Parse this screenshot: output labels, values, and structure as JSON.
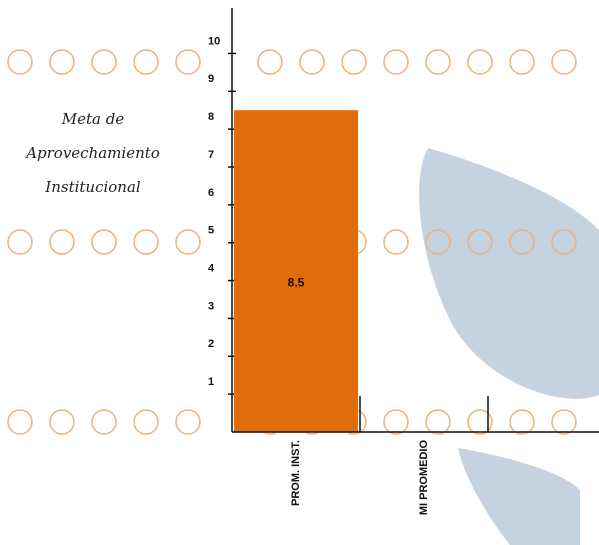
{
  "chart_data": {
    "type": "bar",
    "annotation_lines": [
      "Meta de",
      "Aprovechamiento",
      "Institucional"
    ],
    "categories": [
      "PROM. INST.",
      "MI PROMEDIO"
    ],
    "values": [
      8.5,
      null
    ],
    "color": "#e06c0a",
    "ylim": [
      0,
      11.2
    ],
    "yticks": [
      1,
      2,
      3,
      4,
      5,
      6,
      7,
      8,
      9,
      10
    ]
  }
}
